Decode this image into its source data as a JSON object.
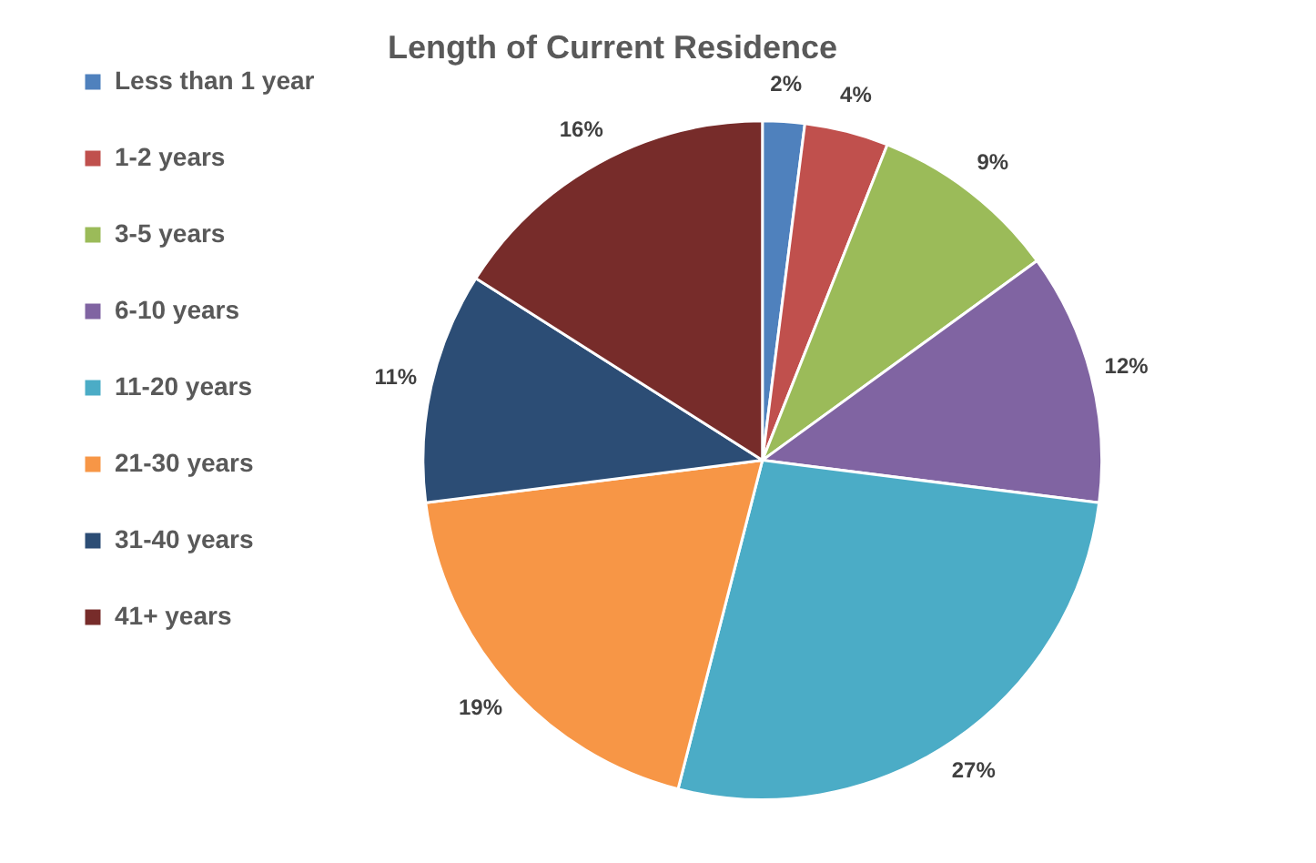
{
  "chart_data": {
    "type": "pie",
    "title": "Length of Current Residence",
    "categories": [
      "Less than 1 year",
      "1-2 years",
      "3-5 years",
      "6-10 years",
      "11-20 years",
      "21-30 years",
      "31-40 years",
      "41+ years"
    ],
    "values": [
      2,
      4,
      9,
      12,
      27,
      19,
      11,
      16
    ],
    "value_labels": [
      "2%",
      "4%",
      "9%",
      "12%",
      "27%",
      "19%",
      "11%",
      "16%"
    ],
    "colors": [
      "#4f81bd",
      "#c0504d",
      "#9bbb59",
      "#8064a2",
      "#4bacc6",
      "#f79646",
      "#2c4d75",
      "#772c2a"
    ],
    "legend": "left"
  }
}
